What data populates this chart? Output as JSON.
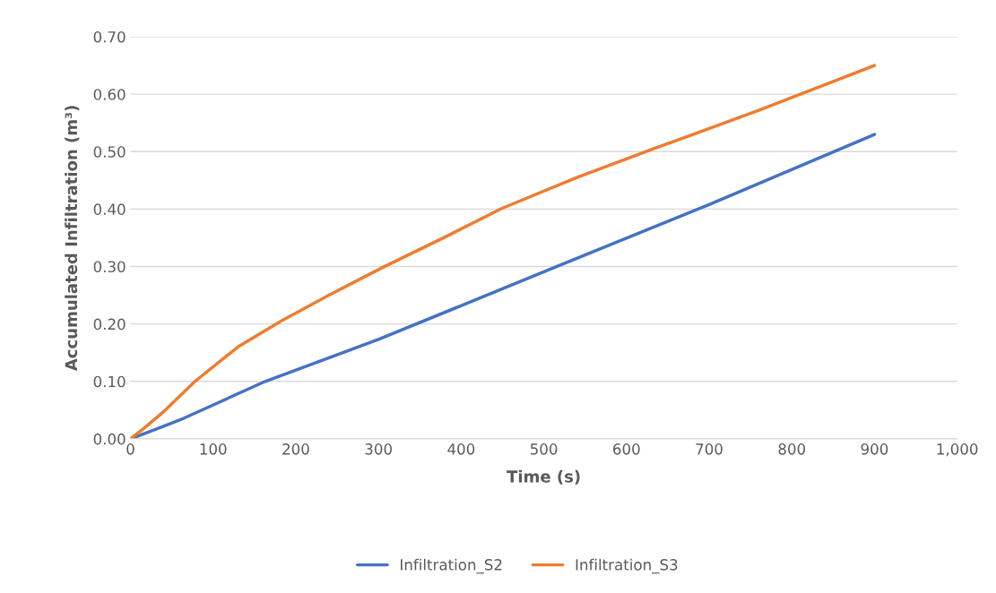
{
  "chart_data": {
    "type": "line",
    "xlabel": "Time (s)",
    "ylabel": "Accumulated Infiltration (m³)",
    "xlim": [
      0,
      1000
    ],
    "xticks": [
      0,
      100,
      200,
      300,
      400,
      500,
      600,
      700,
      800,
      900,
      {
        "value": 1000,
        "label": "1,000"
      }
    ],
    "ylim": [
      0,
      0.7
    ],
    "yticks": [
      {
        "value": 0,
        "label": "0.00"
      },
      {
        "value": 0.1,
        "label": "0.10"
      },
      {
        "value": 0.2,
        "label": "0.20"
      },
      {
        "value": 0.3,
        "label": "0.30"
      },
      {
        "value": 0.4,
        "label": "0.40"
      },
      {
        "value": 0.5,
        "label": "0.50"
      },
      {
        "value": 0.6,
        "label": "0.60"
      },
      {
        "value": 0.7,
        "label": "0.70"
      }
    ],
    "grid": "y",
    "legend": "bottom",
    "marker": "none",
    "line_style": "solid",
    "series": [
      {
        "name": "Infiltration_S2",
        "color": "#4472c4",
        "x": [
          0,
          13,
          33,
          60,
          163,
          300,
          514,
          700,
          900
        ],
        "values": [
          0,
          0.007,
          0.018,
          0.033,
          0.1,
          0.173,
          0.299,
          0.408,
          0.53
        ]
      },
      {
        "name": "Infiltration_S3",
        "color": "#ed7d31",
        "x": [
          0,
          16,
          39,
          78,
          130,
          182,
          240,
          306,
          380,
          449,
          540,
          631,
          760,
          900
        ],
        "values": [
          0,
          0.018,
          0.046,
          0.1,
          0.16,
          0.205,
          0.25,
          0.299,
          0.351,
          0.401,
          0.455,
          0.504,
          0.572,
          0.65
        ]
      }
    ]
  }
}
